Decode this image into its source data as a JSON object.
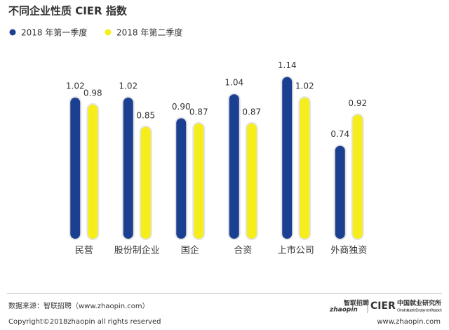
{
  "chart_data": {
    "type": "bar",
    "title": "不同企业性质 CIER 指数",
    "categories": [
      "民营",
      "股份制企业",
      "国企",
      "合资",
      "上市公司",
      "外商独资"
    ],
    "series": [
      {
        "name": "2018 年第一季度",
        "color": "#1b3f91",
        "values": [
          1.02,
          1.02,
          0.9,
          1.04,
          1.14,
          0.74
        ],
        "value_labels": [
          "1.02",
          "1.02",
          "0.90",
          "1.04",
          "1.14",
          "0.74"
        ]
      },
      {
        "name": "2018 年第二季度",
        "color": "#f6ee1c",
        "values": [
          0.98,
          0.85,
          0.87,
          0.87,
          1.02,
          0.92
        ],
        "value_labels": [
          "0.98",
          "0.85",
          "0.87",
          "0.87",
          "1.02",
          "0.92"
        ]
      }
    ],
    "ylim": [
      0.2,
      1.2
    ]
  },
  "footer": {
    "source": "数据来源：智联招聘（www.zhaopin.com）",
    "copyright": "Copyright©2018zhaopin all rights reserved",
    "url": "www.zhaopin.com",
    "logo_zhaopin": "智联招聘",
    "logo_zhaopin_en": "zhaopin",
    "logo_cier": "CIER",
    "logo_cier_cn": "中国就业研究所",
    "logo_cier_en": "China Institute for Employment Research"
  }
}
